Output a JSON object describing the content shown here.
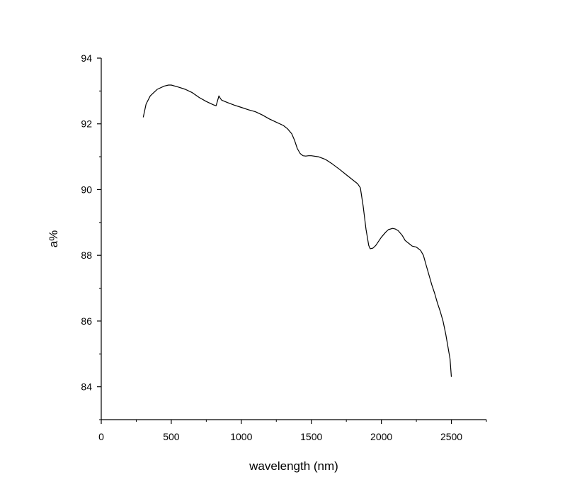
{
  "chart_data": {
    "type": "line",
    "title": "",
    "xlabel": "wavelength (nm)",
    "ylabel": "a%",
    "xlim": [
      0,
      2750
    ],
    "ylim": [
      83,
      94
    ],
    "x_ticks": [
      0,
      500,
      1000,
      1500,
      2000,
      2500
    ],
    "x_tick_labels": [
      "0",
      "500",
      "1000",
      "1500",
      "2000",
      "2500"
    ],
    "y_ticks": [
      84,
      86,
      88,
      90,
      92,
      94
    ],
    "y_tick_labels": [
      "84",
      "86",
      "88",
      "90",
      "92",
      "94"
    ],
    "grid": false,
    "legend": "none",
    "line_color": "#000000",
    "series": [
      {
        "x": [
          300,
          320,
          350,
          400,
          450,
          480,
          500,
          550,
          600,
          650,
          700,
          750,
          800,
          820,
          830,
          840,
          850,
          860,
          900,
          950,
          1000,
          1050,
          1100,
          1150,
          1200,
          1250,
          1300,
          1330,
          1360,
          1380,
          1400,
          1420,
          1440,
          1460,
          1480,
          1500,
          1550,
          1600,
          1650,
          1700,
          1750,
          1800,
          1830,
          1850,
          1870,
          1890,
          1910,
          1920,
          1940,
          1960,
          2000,
          2030,
          2050,
          2080,
          2100,
          2120,
          2150,
          2170,
          2200,
          2220,
          2250,
          2280,
          2300,
          2320,
          2340,
          2360,
          2380,
          2400,
          2420,
          2440,
          2460,
          2470,
          2480,
          2490,
          2500
        ],
        "y": [
          92.2,
          92.6,
          92.85,
          93.05,
          93.15,
          93.18,
          93.18,
          93.12,
          93.05,
          92.95,
          92.8,
          92.68,
          92.58,
          92.55,
          92.7,
          92.85,
          92.78,
          92.72,
          92.65,
          92.57,
          92.5,
          92.43,
          92.37,
          92.27,
          92.15,
          92.05,
          91.95,
          91.85,
          91.7,
          91.5,
          91.25,
          91.1,
          91.03,
          91.02,
          91.03,
          91.03,
          91.0,
          90.92,
          90.78,
          90.62,
          90.45,
          90.28,
          90.18,
          90.05,
          89.5,
          88.8,
          88.3,
          88.2,
          88.22,
          88.3,
          88.55,
          88.7,
          88.78,
          88.82,
          88.8,
          88.75,
          88.6,
          88.45,
          88.35,
          88.28,
          88.25,
          88.15,
          88.0,
          87.7,
          87.4,
          87.1,
          86.85,
          86.55,
          86.3,
          86.0,
          85.6,
          85.35,
          85.1,
          84.85,
          84.3
        ]
      }
    ]
  }
}
